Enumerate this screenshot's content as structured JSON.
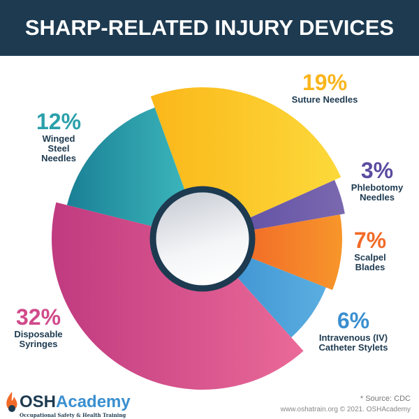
{
  "chart_data": {
    "type": "pie",
    "title": "SHARP-RELATED INJURY DEVICES",
    "slices": [
      {
        "label": "Suture Needles",
        "value": 19,
        "value_label": "19%",
        "color": "#fbb71a",
        "color2": "#fcd93a"
      },
      {
        "label": "Phlebotomy Needles",
        "value": 3,
        "value_label": "3%",
        "color": "#5b4ba0",
        "color2": "#7a68b0"
      },
      {
        "label": "Scalpel Blades",
        "value": 7,
        "value_label": "7%",
        "color": "#f05a28",
        "color2": "#f7962a"
      },
      {
        "label": "Intravenous (IV)\nCatheter Stylets",
        "value": 6,
        "value_label": "6%",
        "color": "#3a8fd0",
        "color2": "#5aaee0"
      },
      {
        "label": "Disposable\nSyringes",
        "value": 32,
        "value_label": "32%",
        "color": "#c03a80",
        "color2": "#ea6a98"
      },
      {
        "label": "Winged\nSteel\nNeedles",
        "value": 12,
        "value_label": "12%",
        "color": "#1a8095",
        "color2": "#40bcc0"
      }
    ],
    "style": "donut with varying slice radii"
  },
  "footer": {
    "logo": "OSHAcademy",
    "logo_tagline": "Occupational Safety & Health Training",
    "source": "* Source: CDC",
    "credit": "www.oshatrain.org © 2021. OSHAcademy"
  },
  "colors": {
    "title_bar": "#1d3a50",
    "ring": "#1d3a50"
  }
}
